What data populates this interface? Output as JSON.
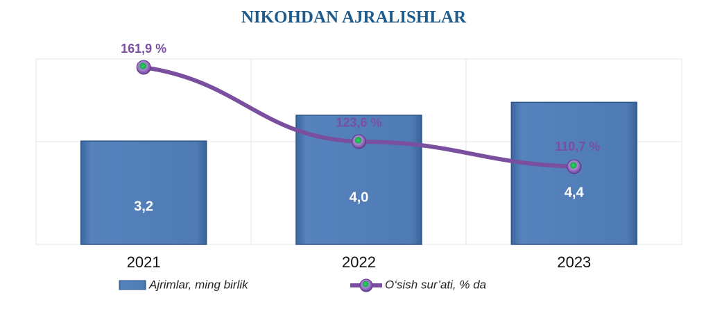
{
  "chart_data": {
    "type": "bar-line",
    "title": "NIKOHDAN AJRALISHLAR",
    "categories": [
      "2021",
      "2022",
      "2023"
    ],
    "series": [
      {
        "name": "Ajrimlar, ming birlik",
        "type": "bar",
        "color": "#4f7bb5",
        "values": [
          3.2,
          4.0,
          4.4
        ],
        "value_labels": [
          "3,2",
          "4,0",
          "4,4"
        ]
      },
      {
        "name": "O‘sish sur’ati, % da",
        "type": "line",
        "axis": "y2",
        "color": "#7b4fa0",
        "values": [
          161.9,
          123.6,
          110.7
        ],
        "value_labels": [
          "161,9 %",
          "123,6 %",
          "110,7 %"
        ]
      }
    ],
    "ylim": [
      0,
      5.74
    ],
    "y2lim": [
      70.6,
      166.2
    ]
  }
}
